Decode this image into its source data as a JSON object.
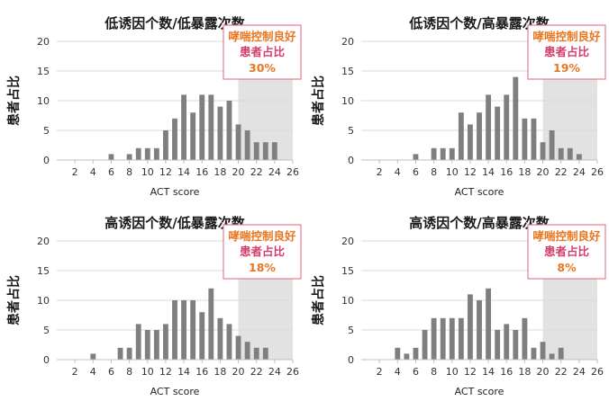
{
  "chart_data": [
    {
      "type": "bar",
      "title": "低诱因个数/低暴露次数",
      "xlabel": "ACT score",
      "ylabel": "患者占比",
      "xlim": [
        0,
        26
      ],
      "ylim": [
        0,
        20
      ],
      "x_ticks": [
        2,
        4,
        6,
        8,
        10,
        12,
        14,
        16,
        18,
        20,
        22,
        24,
        26
      ],
      "y_ticks": [
        0,
        5,
        10,
        15,
        20
      ],
      "grid": true,
      "highlight_range": [
        20,
        26
      ],
      "annotation": {
        "line1": "哮喘控制良好",
        "line2": "患者占比",
        "value": "30%"
      },
      "x": [
        5,
        6,
        7,
        8,
        9,
        10,
        11,
        12,
        13,
        14,
        15,
        16,
        17,
        18,
        19,
        20,
        21,
        22,
        23,
        24,
        25
      ],
      "values": [
        0,
        1,
        0,
        1,
        2,
        2,
        2,
        5,
        7,
        11,
        8,
        11,
        11,
        9,
        10,
        6,
        5,
        3,
        3,
        3,
        0
      ]
    },
    {
      "type": "bar",
      "title": "低诱因个数/高暴露次数",
      "xlabel": "ACT score",
      "ylabel": "患者占比",
      "xlim": [
        0,
        26
      ],
      "ylim": [
        0,
        20
      ],
      "x_ticks": [
        2,
        4,
        6,
        8,
        10,
        12,
        14,
        16,
        18,
        20,
        22,
        24,
        26
      ],
      "y_ticks": [
        0,
        5,
        10,
        15,
        20
      ],
      "grid": true,
      "highlight_range": [
        20,
        26
      ],
      "annotation": {
        "line1": "哮喘控制良好",
        "line2": "患者占比",
        "value": "19%"
      },
      "x": [
        5,
        6,
        7,
        8,
        9,
        10,
        11,
        12,
        13,
        14,
        15,
        16,
        17,
        18,
        19,
        20,
        21,
        22,
        23,
        24,
        25
      ],
      "values": [
        0,
        1,
        0,
        2,
        2,
        2,
        8,
        6,
        8,
        11,
        9,
        11,
        14,
        7,
        7,
        3,
        5,
        2,
        2,
        1,
        0
      ]
    },
    {
      "type": "bar",
      "title": "高诱因个数/低暴露次数",
      "xlabel": "ACT score",
      "ylabel": "患者占比",
      "xlim": [
        0,
        26
      ],
      "ylim": [
        0,
        20
      ],
      "x_ticks": [
        2,
        4,
        6,
        8,
        10,
        12,
        14,
        16,
        18,
        20,
        22,
        24,
        26
      ],
      "y_ticks": [
        0,
        5,
        10,
        15,
        20
      ],
      "grid": true,
      "highlight_range": [
        20,
        26
      ],
      "annotation": {
        "line1": "哮喘控制良好",
        "line2": "患者占比",
        "value": "18%"
      },
      "x": [
        4,
        5,
        6,
        7,
        8,
        9,
        10,
        11,
        12,
        13,
        14,
        15,
        16,
        17,
        18,
        19,
        20,
        21,
        22,
        23
      ],
      "values": [
        1,
        0,
        0,
        2,
        2,
        6,
        5,
        5,
        6,
        10,
        10,
        10,
        8,
        12,
        7,
        6,
        4,
        3,
        2,
        2
      ]
    },
    {
      "type": "bar",
      "title": "高诱因个数/高暴露次数",
      "xlabel": "ACT score",
      "ylabel": "患者占比",
      "xlim": [
        0,
        26
      ],
      "ylim": [
        0,
        20
      ],
      "x_ticks": [
        2,
        4,
        6,
        8,
        10,
        12,
        14,
        16,
        18,
        20,
        22,
        24,
        26
      ],
      "y_ticks": [
        0,
        5,
        10,
        15,
        20
      ],
      "grid": true,
      "highlight_range": [
        20,
        26
      ],
      "annotation": {
        "line1": "哮喘控制良好",
        "line2": "患者占比",
        "value": "8%"
      },
      "x": [
        4,
        5,
        6,
        7,
        8,
        9,
        10,
        11,
        12,
        13,
        14,
        15,
        16,
        17,
        18,
        19,
        20,
        21,
        22,
        23
      ],
      "values": [
        2,
        1,
        2,
        5,
        7,
        7,
        7,
        7,
        11,
        10,
        12,
        5,
        6,
        5,
        7,
        2,
        3,
        1,
        2,
        0
      ]
    }
  ],
  "colors": {
    "bar": "#7f7f7f",
    "highlight": "#e2e2e2",
    "grid": "#d9d9d9",
    "annotation_border": "#e87d8c",
    "annotation_text_orange": "#e87722",
    "annotation_text_pink": "#d63c6b"
  }
}
